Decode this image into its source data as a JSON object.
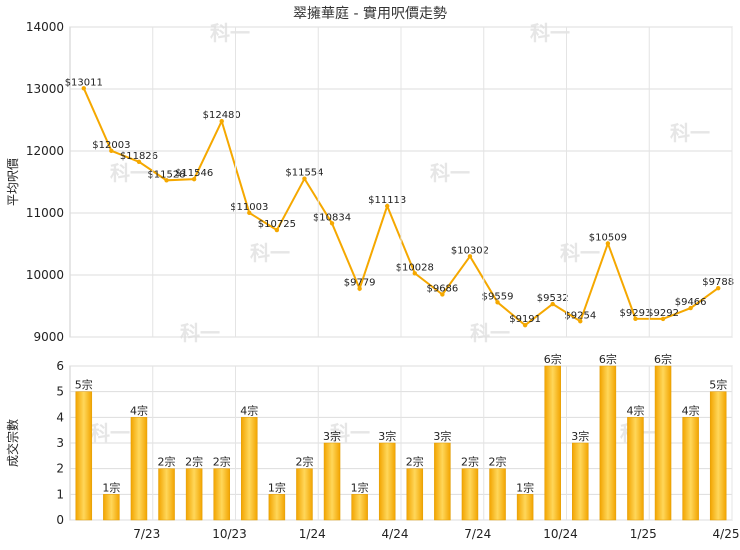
{
  "title": "翠擁華庭 - 實用呎價走勢",
  "watermark": "科一",
  "chart_data": [
    {
      "type": "line",
      "ylabel": "平均呎價",
      "ylim": [
        9000,
        14000
      ],
      "yticks": [
        9000,
        10000,
        11000,
        12000,
        13000,
        14000
      ],
      "color": "#f5a800",
      "values": [
        13011,
        12003,
        11826,
        11528,
        11546,
        12480,
        11003,
        10725,
        11554,
        10834,
        9779,
        11113,
        10028,
        9686,
        10302,
        9559,
        9191,
        9532,
        9254,
        10509,
        9293,
        9292,
        9466,
        9788
      ],
      "labels": [
        "$13011",
        "$12003",
        "$11826",
        "$11528",
        "$11546",
        "$12480",
        "$11003",
        "$10725",
        "$11554",
        "$10834",
        "$9779",
        "$11113",
        "$10028",
        "$9686",
        "$10302",
        "$9559",
        "$9191",
        "$9532",
        "$9254",
        "$10509",
        "$9293",
        "$9292",
        "$9466",
        "$9788"
      ]
    },
    {
      "type": "bar",
      "ylabel": "成交宗數",
      "ylim": [
        0,
        6
      ],
      "yticks": [
        0,
        1,
        2,
        3,
        4,
        5,
        6
      ],
      "color": "#f5a800",
      "values": [
        5,
        1,
        4,
        2,
        2,
        2,
        4,
        1,
        2,
        3,
        1,
        3,
        2,
        3,
        2,
        2,
        1,
        6,
        3,
        6,
        4,
        6,
        4,
        5
      ],
      "labels": [
        "5宗",
        "1宗",
        "4宗",
        "2宗",
        "2宗",
        "2宗",
        "4宗",
        "1宗",
        "2宗",
        "3宗",
        "1宗",
        "3宗",
        "2宗",
        "3宗",
        "2宗",
        "2宗",
        "1宗",
        "6宗",
        "3宗",
        "6宗",
        "4宗",
        "6宗",
        "4宗",
        "5宗"
      ],
      "xticks": [
        "7/23",
        "10/23",
        "1/24",
        "4/24",
        "7/24",
        "10/24",
        "1/25",
        "4/25"
      ]
    }
  ]
}
